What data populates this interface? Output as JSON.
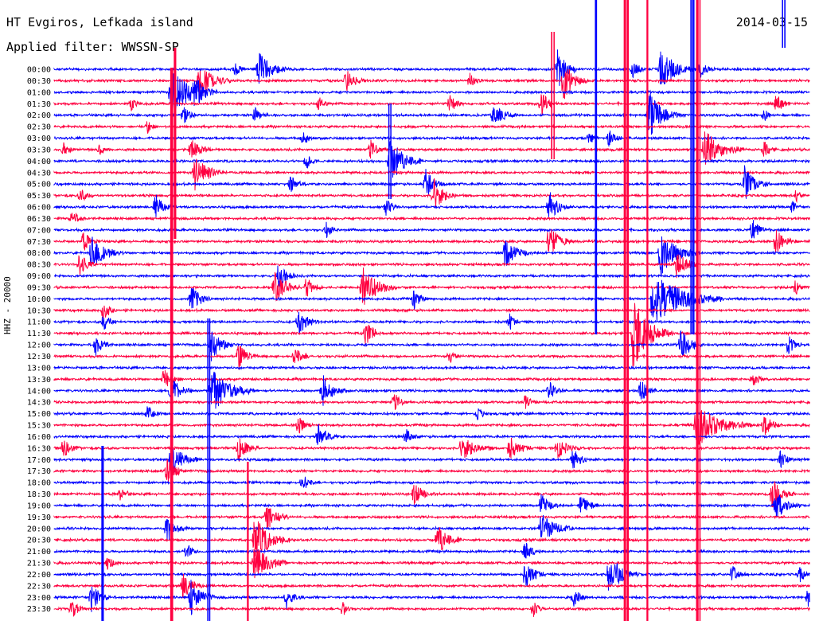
{
  "header": {
    "title": "HT Evgiros, Lefkada island",
    "date": "2014-03-15",
    "filter": "Applied filter: WWSSN-SP"
  },
  "chart_data": {
    "type": "line",
    "title": "HT Evgiros, Lefkada island",
    "subtitle": "Applied filter: WWSSN-SP",
    "ylabel": "HHZ - 20000",
    "xlabel": "",
    "date": "2014-03-15",
    "grid": false,
    "series_colors": [
      "#0000ff",
      "#ff0040"
    ],
    "rows": [
      "00:00",
      "00:30",
      "01:00",
      "01:30",
      "02:00",
      "02:30",
      "03:00",
      "03:30",
      "04:00",
      "04:30",
      "05:00",
      "05:30",
      "06:00",
      "06:30",
      "07:00",
      "07:30",
      "08:00",
      "08:30",
      "09:00",
      "09:30",
      "10:00",
      "10:30",
      "11:00",
      "11:30",
      "12:00",
      "12:30",
      "13:00",
      "13:30",
      "14:00",
      "14:30",
      "15:00",
      "15:30",
      "16:00",
      "16:30",
      "17:00",
      "17:30",
      "18:00",
      "18:30",
      "19:00",
      "19:30",
      "20:00",
      "20:30",
      "21:00",
      "21:30",
      "22:00",
      "22:30",
      "23:00",
      "23:30"
    ]
  }
}
